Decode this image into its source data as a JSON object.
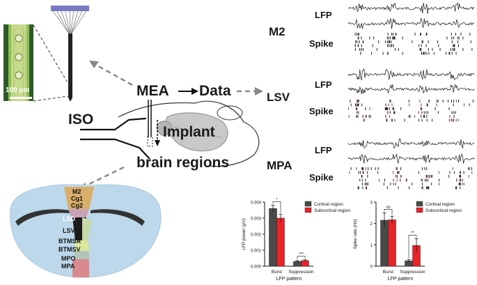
{
  "diagram": {
    "scale_bar": "100 μm",
    "labels": {
      "mea": "MEA",
      "data": "Data",
      "iso": "ISO",
      "implant": "Implant",
      "brain_regions": "brain regions"
    },
    "regions": [
      {
        "name": "M2",
        "signals": [
          "LFP",
          "Spike"
        ]
      },
      {
        "name": "LSV",
        "signals": [
          "LFP",
          "Spike"
        ]
      },
      {
        "name": "MPA",
        "signals": [
          "LFP",
          "Spike"
        ]
      }
    ],
    "brain_section_labels": [
      "M2",
      "Cg1",
      "Cg2",
      "LSD",
      "LSV",
      "BTMSA",
      "BTMSV",
      "MPO",
      "MPA"
    ]
  },
  "chart_data": [
    {
      "type": "bar",
      "categories": [
        "Burst",
        "Suppression"
      ],
      "series": [
        {
          "name": "Cortical region",
          "values": [
            0.0036,
            0.0003
          ],
          "error": [
            0.0002,
            5e-05
          ],
          "color": "#4a4a4a"
        },
        {
          "name": "Subcortical region",
          "values": [
            0.003,
            0.00035
          ],
          "error": [
            0.00025,
            5e-05
          ],
          "color": "#e8242a"
        }
      ],
      "xlabel": "LFP pattern",
      "ylabel": "LFP power (μV)",
      "ylim": [
        0,
        0.004
      ],
      "yticks": [
        "0.000",
        "0.001",
        "0.002",
        "0.003",
        "0.004"
      ],
      "significance": [
        "*",
        "***"
      ],
      "legend": "top-right"
    },
    {
      "type": "bar",
      "categories": [
        "Burst",
        "Suppression"
      ],
      "series": [
        {
          "name": "Cortical region",
          "values": [
            2.15,
            0.25
          ],
          "error": [
            0.35,
            0.07
          ],
          "color": "#4a4a4a"
        },
        {
          "name": "Subcortical region",
          "values": [
            2.17,
            0.97
          ],
          "error": [
            0.17,
            0.32
          ],
          "color": "#e8242a"
        }
      ],
      "xlabel": "LFP pattern",
      "ylabel": "Spike rate (Hz)",
      "ylim": [
        0,
        3
      ],
      "yticks": [
        "0",
        "1",
        "2",
        "3"
      ],
      "significance": [
        "ns",
        "**"
      ],
      "legend": "top-right"
    }
  ]
}
